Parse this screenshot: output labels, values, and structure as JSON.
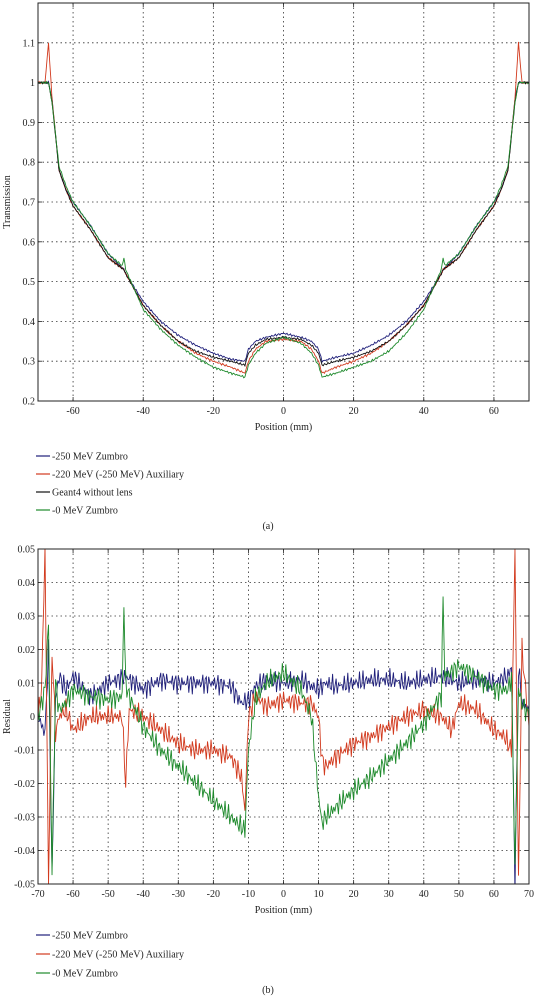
{
  "chart_data": [
    {
      "type": "line",
      "panel_label": "(a)",
      "xlabel": "Position (mm)",
      "ylabel": "Transmission",
      "xlim": [
        -70,
        70
      ],
      "ylim": [
        0.2,
        1.2
      ],
      "xticks": [
        -60,
        -40,
        -20,
        0,
        20,
        40,
        60
      ],
      "yticks": [
        0.2,
        0.3,
        0.4,
        0.5,
        0.6,
        0.7,
        0.8,
        0.9,
        1.0,
        1.1
      ],
      "ytick_labels": [
        "0.2",
        "0.3",
        "0.4",
        "0.5",
        "0.6",
        "0.7",
        "0.8",
        "0.9",
        "1",
        "1.1"
      ],
      "grid": true,
      "legend_position": "below",
      "series": [
        {
          "name": "-250 MeV Zumbro",
          "color": "#1f1f7a",
          "x": [
            -70,
            -67,
            -66,
            -64,
            -62,
            -60,
            -55,
            -50,
            -45.5,
            -45,
            -40,
            -35,
            -30,
            -25,
            -20,
            -15,
            -11,
            -10,
            -8,
            -5,
            0,
            5,
            8,
            10,
            11,
            15,
            20,
            25,
            30,
            35,
            40,
            45,
            45.5,
            50,
            55,
            60,
            62,
            64,
            66,
            67,
            70
          ],
          "y": [
            1.0,
            1.0,
            0.96,
            0.78,
            0.73,
            0.7,
            0.64,
            0.57,
            0.53,
            0.52,
            0.45,
            0.4,
            0.365,
            0.34,
            0.32,
            0.305,
            0.3,
            0.33,
            0.35,
            0.36,
            0.37,
            0.36,
            0.35,
            0.33,
            0.3,
            0.31,
            0.32,
            0.34,
            0.365,
            0.4,
            0.45,
            0.52,
            0.53,
            0.57,
            0.64,
            0.7,
            0.73,
            0.78,
            0.96,
            1.0,
            1.0
          ]
        },
        {
          "name": "-220 MeV (-250 MeV) Auxiliary",
          "color": "#d23a1e",
          "x": [
            -70,
            -68,
            -67,
            -66,
            -64,
            -62,
            -60,
            -55,
            -50,
            -45.5,
            -45,
            -40,
            -35,
            -30,
            -25,
            -20,
            -15,
            -11,
            -10,
            -8,
            -5,
            0,
            5,
            8,
            10,
            11,
            15,
            20,
            25,
            30,
            35,
            40,
            45,
            45.5,
            50,
            55,
            60,
            62,
            64,
            66,
            67,
            68,
            70
          ],
          "y": [
            1.0,
            1.0,
            1.1,
            0.96,
            0.78,
            0.73,
            0.69,
            0.63,
            0.56,
            0.53,
            0.52,
            0.44,
            0.39,
            0.35,
            0.32,
            0.3,
            0.285,
            0.27,
            0.3,
            0.33,
            0.35,
            0.355,
            0.35,
            0.33,
            0.3,
            0.27,
            0.285,
            0.3,
            0.32,
            0.35,
            0.39,
            0.44,
            0.52,
            0.53,
            0.56,
            0.63,
            0.69,
            0.73,
            0.78,
            0.96,
            1.1,
            1.0,
            1.0
          ]
        },
        {
          "name": "Geant4 without lens",
          "color": "#111111",
          "x": [
            -70,
            -67,
            -66,
            -64,
            -62,
            -60,
            -55,
            -50,
            -45.5,
            -45,
            -40,
            -35,
            -30,
            -25,
            -20,
            -15,
            -11,
            -10,
            -8,
            -5,
            0,
            5,
            8,
            10,
            11,
            15,
            20,
            25,
            30,
            35,
            40,
            45,
            45.5,
            50,
            55,
            60,
            62,
            64,
            66,
            67,
            70
          ],
          "y": [
            1.0,
            1.0,
            0.95,
            0.78,
            0.73,
            0.69,
            0.63,
            0.56,
            0.53,
            0.52,
            0.44,
            0.39,
            0.35,
            0.325,
            0.31,
            0.3,
            0.29,
            0.32,
            0.34,
            0.355,
            0.36,
            0.355,
            0.34,
            0.32,
            0.29,
            0.3,
            0.31,
            0.325,
            0.35,
            0.39,
            0.44,
            0.52,
            0.53,
            0.56,
            0.63,
            0.69,
            0.73,
            0.78,
            0.95,
            1.0,
            1.0
          ]
        },
        {
          "name": "-0 MeV Zumbro",
          "color": "#1e8a2c",
          "x": [
            -70,
            -67,
            -66,
            -64,
            -62,
            -60,
            -55,
            -50,
            -46,
            -45.5,
            -45,
            -40,
            -35,
            -30,
            -25,
            -20,
            -15,
            -11,
            -10,
            -8,
            -5,
            0,
            5,
            8,
            10,
            11,
            15,
            20,
            25,
            30,
            35,
            40,
            45,
            45.5,
            46,
            50,
            55,
            60,
            62,
            64,
            66,
            67,
            70
          ],
          "y": [
            1.0,
            1.0,
            0.95,
            0.79,
            0.74,
            0.7,
            0.64,
            0.57,
            0.54,
            0.56,
            0.53,
            0.43,
            0.38,
            0.34,
            0.31,
            0.285,
            0.27,
            0.26,
            0.29,
            0.32,
            0.345,
            0.36,
            0.345,
            0.32,
            0.29,
            0.26,
            0.27,
            0.285,
            0.3,
            0.325,
            0.37,
            0.43,
            0.53,
            0.56,
            0.54,
            0.57,
            0.64,
            0.7,
            0.74,
            0.79,
            0.95,
            1.0,
            1.0
          ]
        }
      ]
    },
    {
      "type": "line",
      "panel_label": "(b)",
      "xlabel": "Position (mm)",
      "ylabel": "Residual",
      "xlim": [
        -70,
        70
      ],
      "ylim": [
        -0.05,
        0.05
      ],
      "xticks": [
        -70,
        -60,
        -50,
        -40,
        -30,
        -20,
        -10,
        0,
        10,
        20,
        30,
        40,
        50,
        60,
        70
      ],
      "yticks": [
        -0.05,
        -0.04,
        -0.03,
        -0.02,
        -0.01,
        0,
        0.01,
        0.02,
        0.03,
        0.04,
        0.05
      ],
      "ytick_labels": [
        "-0.05",
        "-0.04",
        "-0.03",
        "-0.02",
        "-0.01",
        "0",
        "0.01",
        "0.02",
        "0.03",
        "0.04",
        "0.05"
      ],
      "grid": true,
      "legend_position": "below",
      "series": [
        {
          "name": "-250 MeV Zumbro",
          "color": "#1f1f7a",
          "x": [
            -70,
            -68,
            -67,
            -66,
            -65,
            -64,
            -62,
            -60,
            -55,
            -50,
            -45,
            -40,
            -35,
            -30,
            -25,
            -20,
            -15,
            -12,
            -10,
            -8,
            -5,
            0,
            5,
            8,
            10,
            12,
            15,
            20,
            25,
            30,
            35,
            40,
            45,
            50,
            55,
            60,
            64,
            65,
            66,
            67,
            68,
            70
          ],
          "y": [
            0.0,
            -0.005,
            0.02,
            -0.048,
            0.005,
            0.012,
            0.008,
            0.012,
            0.006,
            0.01,
            0.012,
            0.008,
            0.011,
            0.01,
            0.01,
            0.01,
            0.009,
            0.004,
            0.005,
            0.009,
            0.011,
            0.01,
            0.011,
            0.009,
            0.008,
            0.01,
            0.009,
            0.01,
            0.011,
            0.011,
            0.01,
            0.011,
            0.012,
            0.01,
            0.011,
            0.01,
            0.012,
            0.015,
            -0.05,
            0.015,
            0.004,
            0.002
          ]
        },
        {
          "name": "-220 MeV (-250 MeV) Auxiliary",
          "color": "#d23a1e",
          "x": [
            -70,
            -69,
            -68,
            -67,
            -66,
            -65,
            -64,
            -62,
            -60,
            -55,
            -50,
            -46,
            -45,
            -44,
            -40,
            -35,
            -30,
            -25,
            -20,
            -15,
            -12,
            -11,
            -10,
            -8,
            -5,
            0,
            5,
            8,
            10,
            11,
            12,
            15,
            20,
            25,
            30,
            35,
            40,
            45,
            48,
            50,
            55,
            60,
            63,
            65,
            66,
            67,
            68,
            70
          ],
          "y": [
            0.0,
            0.008,
            0.05,
            -0.05,
            0.02,
            -0.005,
            0.0,
            0.002,
            -0.004,
            0.0,
            0.0,
            0.0,
            -0.02,
            0.002,
            0.0,
            -0.004,
            -0.008,
            -0.01,
            -0.01,
            -0.012,
            -0.018,
            -0.028,
            0.0,
            0.006,
            0.003,
            0.005,
            0.004,
            0.004,
            0.0,
            -0.013,
            -0.015,
            -0.012,
            -0.008,
            -0.006,
            -0.003,
            0.0,
            0.002,
            0.0,
            -0.004,
            0.004,
            0.002,
            -0.004,
            -0.006,
            -0.01,
            0.05,
            -0.05,
            0.02,
            -0.003
          ]
        },
        {
          "name": "-0 MeV Zumbro",
          "color": "#1e8a2c",
          "x": [
            -70,
            -68,
            -67,
            -66,
            -65,
            -64,
            -62,
            -60,
            -55,
            -50,
            -46,
            -45.5,
            -45,
            -44,
            -40,
            -35,
            -30,
            -25,
            -20,
            -15,
            -12,
            -11,
            -10,
            -8,
            -5,
            0,
            5,
            8,
            10,
            11,
            12,
            15,
            20,
            25,
            30,
            35,
            40,
            44,
            45,
            45.5,
            46,
            50,
            55,
            60,
            64,
            65,
            66,
            67,
            68,
            70
          ],
          "y": [
            0.0,
            0.008,
            0.028,
            -0.047,
            0.01,
            0.002,
            0.004,
            0.008,
            0.006,
            0.005,
            0.006,
            0.034,
            0.01,
            0.006,
            -0.003,
            -0.01,
            -0.015,
            -0.02,
            -0.025,
            -0.03,
            -0.033,
            -0.034,
            -0.01,
            0.005,
            0.01,
            0.013,
            0.008,
            0.0,
            -0.024,
            -0.032,
            -0.03,
            -0.027,
            -0.022,
            -0.018,
            -0.013,
            -0.008,
            -0.002,
            0.005,
            0.006,
            0.036,
            0.012,
            0.015,
            0.012,
            0.008,
            0.008,
            0.012,
            -0.046,
            0.008,
            0.004,
            0.0
          ]
        }
      ]
    }
  ]
}
